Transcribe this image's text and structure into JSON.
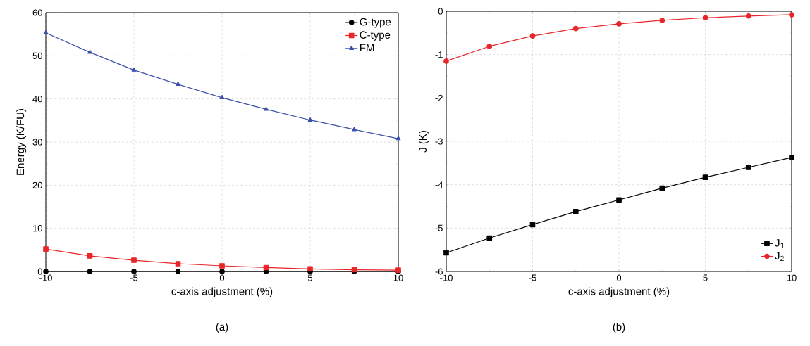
{
  "chart_data": [
    {
      "type": "line",
      "xlabel": "c-axis adjustment (%)",
      "ylabel": "Energy (K/FU)",
      "x": [
        -10,
        -7.5,
        -5,
        -2.5,
        0,
        2.5,
        5,
        7.5,
        10
      ],
      "series": [
        {
          "name": "G-type",
          "color": "#000000",
          "marker": "circle",
          "values": [
            0,
            0,
            0,
            0,
            0,
            0,
            0,
            0,
            0
          ]
        },
        {
          "name": "C-type",
          "color": "#e8262a",
          "marker": "square",
          "values": [
            5.2,
            3.6,
            2.6,
            1.8,
            1.3,
            0.9,
            0.6,
            0.4,
            0.3
          ]
        },
        {
          "name": "FM",
          "color": "#3a50a8",
          "marker": "triangle",
          "values": [
            55.3,
            50.8,
            46.7,
            43.4,
            40.3,
            37.6,
            35.1,
            32.9,
            30.8
          ]
        }
      ],
      "xlim": [
        -10,
        10
      ],
      "ylim": [
        0,
        60
      ],
      "xticks": [
        -10,
        -5,
        0,
        5,
        10
      ],
      "yticks": [
        0,
        10,
        20,
        30,
        40,
        50,
        60
      ],
      "grid": true,
      "legend": "top right",
      "annotations": [
        "(a)"
      ]
    },
    {
      "type": "line",
      "xlabel": "c-axis adjustment (%)",
      "ylabel": "J (K)",
      "x": [
        -10,
        -7.5,
        -5,
        -2.5,
        0,
        2.5,
        5,
        7.5,
        10
      ],
      "series": [
        {
          "name": "J$_{1}$",
          "color": "#000000",
          "marker": "square",
          "values": [
            -5.57,
            -5.23,
            -4.92,
            -4.62,
            -4.35,
            -4.08,
            -3.83,
            -3.6,
            -3.37
          ]
        },
        {
          "name": "J$_{2}$",
          "color": "#e8262a",
          "marker": "circle",
          "values": [
            -1.15,
            -0.81,
            -0.57,
            -0.4,
            -0.29,
            -0.21,
            -0.15,
            -0.11,
            -0.08
          ]
        }
      ],
      "xlim": [
        -10,
        10
      ],
      "ylim": [
        -6,
        0
      ],
      "xticks": [
        -10,
        -5,
        0,
        5,
        10
      ],
      "yticks": [
        -6,
        -5,
        -4,
        -3,
        -2,
        -1,
        0
      ],
      "grid": true,
      "legend": "bottom right",
      "annotations": [
        "(b)"
      ]
    }
  ]
}
